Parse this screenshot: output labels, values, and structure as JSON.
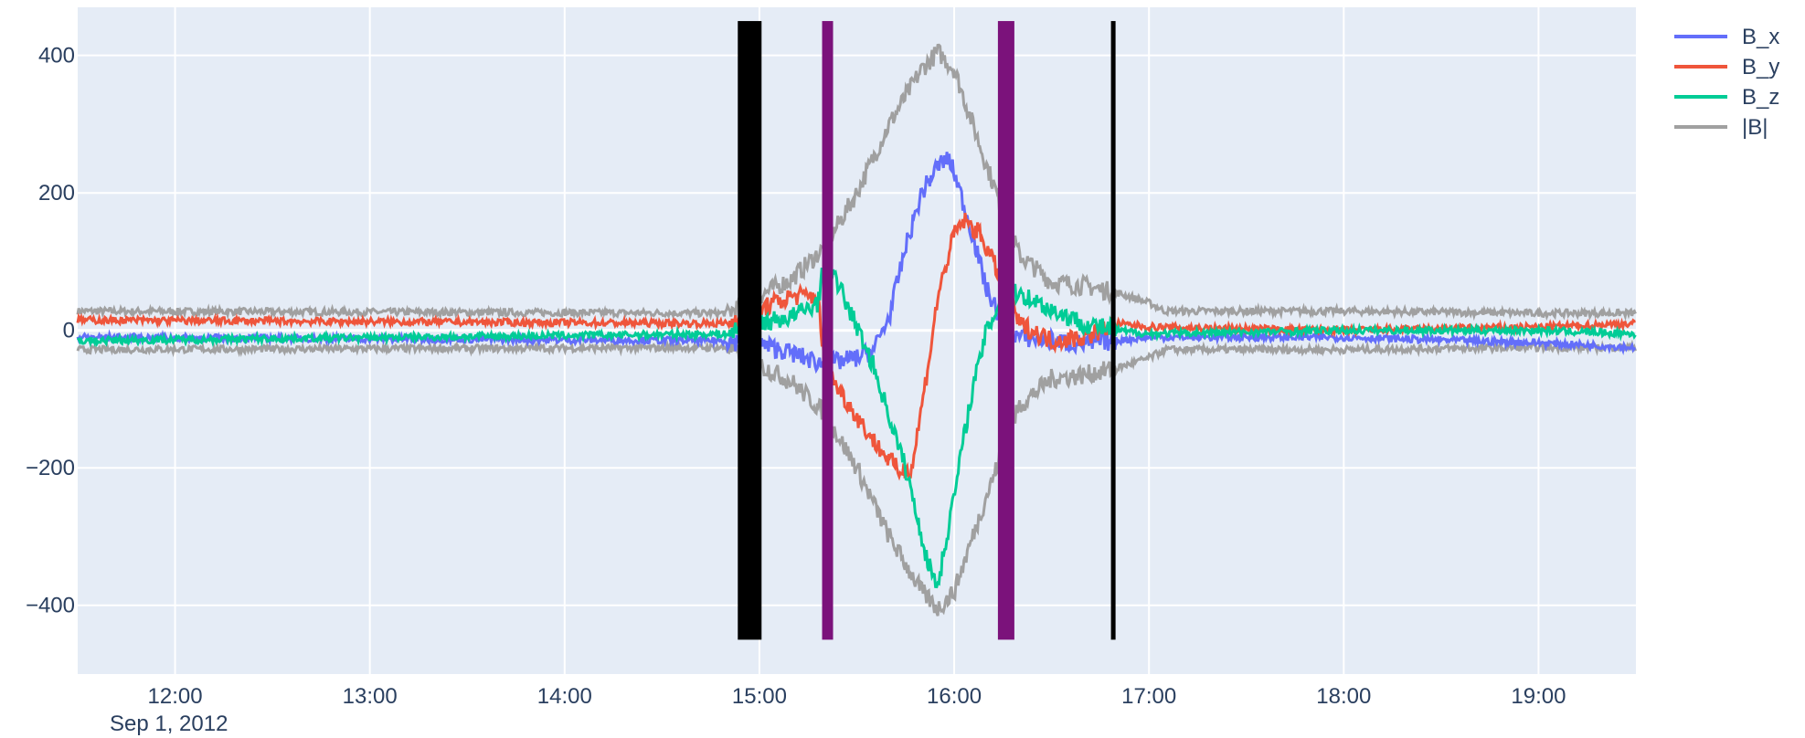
{
  "chart_data": {
    "type": "line",
    "title": "",
    "xlabel": "",
    "ylabel": "",
    "date_label": "Sep 1, 2012",
    "x_range": [
      "11:30",
      "19:30"
    ],
    "ylim": [
      -500,
      470
    ],
    "x_ticks": [
      "12:00",
      "13:00",
      "14:00",
      "15:00",
      "16:00",
      "17:00",
      "18:00",
      "19:00"
    ],
    "y_ticks": [
      {
        "value": 400,
        "label": "400"
      },
      {
        "value": 200,
        "label": "200"
      },
      {
        "value": 0,
        "label": "0"
      },
      {
        "value": -200,
        "label": "−200"
      },
      {
        "value": -400,
        "label": "−400"
      }
    ],
    "grid": true,
    "legend_position": "top-right",
    "series": [
      {
        "name": "B_x",
        "color": "#636efa",
        "points": [
          [
            "11:30",
            -10
          ],
          [
            "14:50",
            -15
          ],
          [
            "15:00",
            -20
          ],
          [
            "15:08",
            -30
          ],
          [
            "15:20",
            -50
          ],
          [
            "15:30",
            -40
          ],
          [
            "15:35",
            -30
          ],
          [
            "15:40",
            20
          ],
          [
            "15:45",
            120
          ],
          [
            "15:50",
            200
          ],
          [
            "15:55",
            240
          ],
          [
            "15:58",
            250
          ],
          [
            "16:00",
            230
          ],
          [
            "16:05",
            150
          ],
          [
            "16:10",
            60
          ],
          [
            "16:15",
            10
          ],
          [
            "16:20",
            -10
          ],
          [
            "16:30",
            -15
          ],
          [
            "16:40",
            -20
          ],
          [
            "16:50",
            -15
          ],
          [
            "17:00",
            -10
          ],
          [
            "18:00",
            -10
          ],
          [
            "19:00",
            -18
          ],
          [
            "19:30",
            -25
          ]
        ]
      },
      {
        "name": "B_y",
        "color": "#ef553b",
        "points": [
          [
            "11:30",
            15
          ],
          [
            "14:50",
            10
          ],
          [
            "15:00",
            30
          ],
          [
            "15:10",
            50
          ],
          [
            "15:18",
            50
          ],
          [
            "15:20",
            -50
          ],
          [
            "15:25",
            -90
          ],
          [
            "15:35",
            -160
          ],
          [
            "15:43",
            -205
          ],
          [
            "15:47",
            -200
          ],
          [
            "15:52",
            -50
          ],
          [
            "15:55",
            50
          ],
          [
            "16:00",
            140
          ],
          [
            "16:03",
            160
          ],
          [
            "16:08",
            140
          ],
          [
            "16:15",
            70
          ],
          [
            "16:20",
            10
          ],
          [
            "16:30",
            -15
          ],
          [
            "16:40",
            -10
          ],
          [
            "16:50",
            10
          ],
          [
            "17:00",
            5
          ],
          [
            "18:00",
            0
          ],
          [
            "19:00",
            5
          ],
          [
            "19:30",
            10
          ]
        ]
      },
      {
        "name": "B_z",
        "color": "#00cc96",
        "points": [
          [
            "11:30",
            -15
          ],
          [
            "14:50",
            -5
          ],
          [
            "15:00",
            10
          ],
          [
            "15:10",
            20
          ],
          [
            "15:18",
            40
          ],
          [
            "15:20",
            100
          ],
          [
            "15:25",
            60
          ],
          [
            "15:35",
            -50
          ],
          [
            "15:45",
            -200
          ],
          [
            "15:52",
            -340
          ],
          [
            "15:55",
            -370
          ],
          [
            "16:00",
            -240
          ],
          [
            "16:05",
            -100
          ],
          [
            "16:10",
            0
          ],
          [
            "16:15",
            50
          ],
          [
            "16:20",
            55
          ],
          [
            "16:30",
            30
          ],
          [
            "16:40",
            10
          ],
          [
            "16:50",
            0
          ],
          [
            "17:00",
            -5
          ],
          [
            "18:00",
            0
          ],
          [
            "19:00",
            0
          ],
          [
            "19:30",
            -5
          ]
        ]
      },
      {
        "name": "|B|",
        "color": "#a0a0a0",
        "envelope": true,
        "points": [
          [
            "11:30",
            28
          ],
          [
            "14:50",
            25
          ],
          [
            "15:00",
            50
          ],
          [
            "15:10",
            75
          ],
          [
            "15:20",
            120
          ],
          [
            "15:30",
            200
          ],
          [
            "15:40",
            300
          ],
          [
            "15:50",
            380
          ],
          [
            "15:55",
            405
          ],
          [
            "16:00",
            380
          ],
          [
            "16:10",
            240
          ],
          [
            "16:20",
            110
          ],
          [
            "16:30",
            70
          ],
          [
            "16:40",
            65
          ],
          [
            "16:50",
            55
          ],
          [
            "17:00",
            40
          ],
          [
            "17:05",
            28
          ],
          [
            "18:00",
            28
          ],
          [
            "19:00",
            25
          ],
          [
            "19:30",
            25
          ]
        ]
      }
    ],
    "vertical_markers": [
      {
        "time": "14:57",
        "color": "#000000"
      },
      {
        "time": "15:21",
        "color": "#7b127b"
      },
      {
        "time": "16:16",
        "color": "#7b127b"
      },
      {
        "time": "16:49",
        "color": "#000000"
      }
    ]
  }
}
